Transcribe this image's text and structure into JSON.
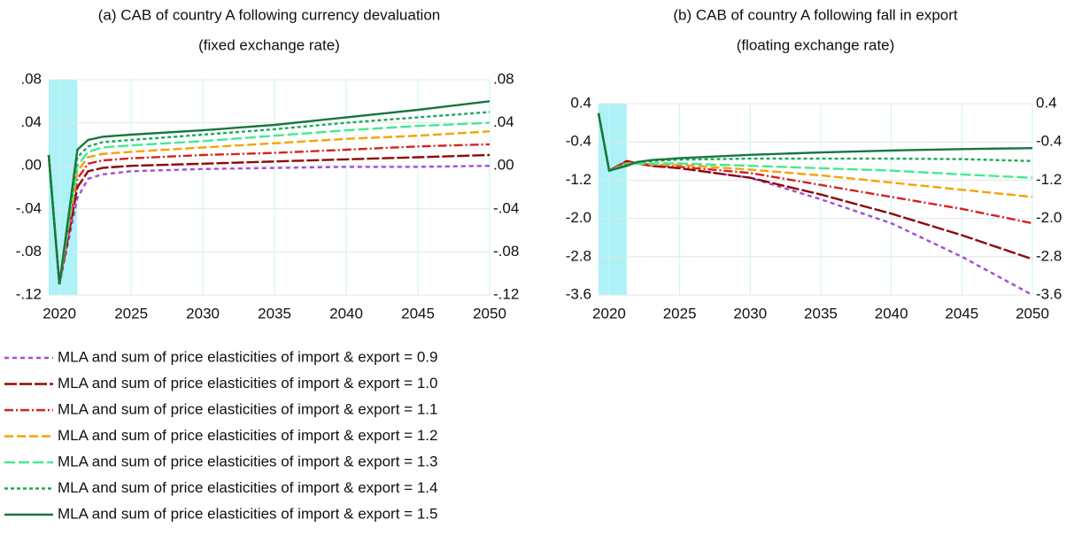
{
  "chart_data": [
    {
      "type": "line",
      "title": "(a) CAB of country A following currency devaluation",
      "subtitle": "(fixed exchange rate)",
      "x": [
        2019.25,
        2020,
        2021.25,
        2022,
        2023,
        2025,
        2030,
        2035,
        2040,
        2045,
        2050
      ],
      "xlim": [
        2019.25,
        2050
      ],
      "xticks": [
        2020,
        2025,
        2030,
        2035,
        2040,
        2045,
        2050
      ],
      "ylim": [
        -0.12,
        0.08
      ],
      "yticks": [
        {
          "value": 0.08,
          "label": ".08"
        },
        {
          "value": 0.04,
          "label": ".04"
        },
        {
          "value": 0,
          "label": ".00"
        },
        {
          "value": -0.04,
          "label": "-.04"
        },
        {
          "value": -0.08,
          "label": "-.08"
        },
        {
          "value": -0.12,
          "label": "-.12"
        }
      ],
      "y2lim": [
        -0.12,
        0.08
      ],
      "y2ticks": [
        {
          "value": 0.08,
          "label": ".08"
        },
        {
          "value": 0.04,
          "label": ".04"
        },
        {
          "value": 0,
          "label": ".00"
        },
        {
          "value": -0.04,
          "label": "-.04"
        },
        {
          "value": -0.08,
          "label": "-.08"
        },
        {
          "value": -0.12,
          "label": "-.12"
        }
      ],
      "grid": true,
      "shaded_x": [
        2019.25,
        2021.25
      ],
      "shade_color": "#aef2f7",
      "series": [
        {
          "name": "MLA and sum of price elasticities of import & export = 0.9",
          "color": "#a64bd9",
          "dash": "5,4",
          "values": [
            0.01,
            -0.11,
            -0.03,
            -0.012,
            -0.008,
            -0.005,
            -0.003,
            -0.002,
            -0.001,
            -0.001,
            0.0
          ]
        },
        {
          "name": "MLA and sum of price elasticities of import & export = 1.0",
          "color": "#8b0a0a",
          "dash": "14,3",
          "values": [
            0.01,
            -0.11,
            -0.02,
            -0.005,
            -0.002,
            0.0,
            0.002,
            0.004,
            0.006,
            0.008,
            0.01
          ]
        },
        {
          "name": "MLA and sum of price elasticities of import & export = 1.1",
          "color": "#d42222",
          "dash": "10,3,2,3",
          "values": [
            0.01,
            -0.11,
            -0.012,
            0.002,
            0.005,
            0.007,
            0.01,
            0.012,
            0.015,
            0.018,
            0.02
          ]
        },
        {
          "name": "MLA and sum of price elasticities of import & export = 1.2",
          "color": "#f5a300",
          "dash": "10,4",
          "values": [
            0.01,
            -0.11,
            -0.005,
            0.008,
            0.011,
            0.013,
            0.017,
            0.021,
            0.025,
            0.028,
            0.032
          ]
        },
        {
          "name": "MLA and sum of price elasticities of import & export = 1.3",
          "color": "#45e892",
          "dash": "12,4",
          "values": [
            0.01,
            -0.11,
            0.0,
            0.013,
            0.017,
            0.019,
            0.023,
            0.028,
            0.033,
            0.037,
            0.04
          ]
        },
        {
          "name": "MLA and sum of price elasticities of import & export = 1.4",
          "color": "#1fa85a",
          "dash": "4,3",
          "values": [
            0.01,
            -0.11,
            0.008,
            0.018,
            0.022,
            0.024,
            0.029,
            0.034,
            0.04,
            0.045,
            0.05
          ]
        },
        {
          "name": "MLA and sum of price elasticities of import & export = 1.5",
          "color": "#17773e",
          "dash": "none",
          "values": [
            0.01,
            -0.11,
            0.015,
            0.024,
            0.027,
            0.029,
            0.033,
            0.038,
            0.045,
            0.052,
            0.06
          ]
        }
      ]
    },
    {
      "type": "line",
      "title": "(b) CAB of country A following fall in export",
      "subtitle": "(floating exchange rate)",
      "x": [
        2019.25,
        2020,
        2021.25,
        2022,
        2023,
        2025,
        2030,
        2035,
        2040,
        2045,
        2050
      ],
      "xlim": [
        2019.25,
        2050
      ],
      "xticks": [
        2020,
        2025,
        2030,
        2035,
        2040,
        2045,
        2050
      ],
      "ylim": [
        -3.6,
        0.4
      ],
      "yticks": [
        0.4,
        -0.4,
        {
          "value": -1.2,
          "label": "-1.2"
        },
        {
          "value": -2,
          "label": "-2.0"
        },
        -2.8,
        -3.6
      ],
      "y2lim": [
        -3.6,
        0.4
      ],
      "y2ticks": [
        0.4,
        -0.4,
        {
          "value": -1.2,
          "label": "-1.2"
        },
        {
          "value": -2,
          "label": "-2.0"
        },
        -2.8,
        -3.6
      ],
      "grid": true,
      "shaded_x": [
        2019.25,
        2021.25
      ],
      "shade_color": "#aef2f7",
      "series": [
        {
          "color": "#a64bd9",
          "dash": "5,4",
          "values": [
            0.2,
            -1.0,
            -0.8,
            -0.85,
            -0.9,
            -0.95,
            -1.15,
            -1.6,
            -2.1,
            -2.8,
            -3.6
          ]
        },
        {
          "color": "#8b0a0a",
          "dash": "14,3",
          "values": [
            0.2,
            -1.0,
            -0.8,
            -0.85,
            -0.9,
            -0.95,
            -1.15,
            -1.5,
            -1.9,
            -2.35,
            -2.85
          ]
        },
        {
          "color": "#d42222",
          "dash": "10,3,2,3",
          "values": [
            0.2,
            -1.0,
            -0.82,
            -0.85,
            -0.88,
            -0.92,
            -1.05,
            -1.3,
            -1.55,
            -1.8,
            -2.1
          ]
        },
        {
          "color": "#f5a300",
          "dash": "10,4",
          "values": [
            0.2,
            -1.0,
            -0.85,
            -0.85,
            -0.87,
            -0.88,
            -0.98,
            -1.1,
            -1.25,
            -1.4,
            -1.55
          ]
        },
        {
          "color": "#45e892",
          "dash": "12,4",
          "values": [
            0.2,
            -1.0,
            -0.87,
            -0.85,
            -0.85,
            -0.85,
            -0.9,
            -0.95,
            -1.0,
            -1.08,
            -1.15
          ]
        },
        {
          "color": "#1fa85a",
          "dash": "4,3",
          "values": [
            0.2,
            -1.0,
            -0.88,
            -0.82,
            -0.8,
            -0.77,
            -0.75,
            -0.75,
            -0.75,
            -0.76,
            -0.8
          ]
        },
        {
          "color": "#17773e",
          "dash": "none",
          "values": [
            0.2,
            -1.0,
            -0.9,
            -0.82,
            -0.78,
            -0.74,
            -0.67,
            -0.62,
            -0.58,
            -0.55,
            -0.53
          ]
        }
      ]
    }
  ]
}
